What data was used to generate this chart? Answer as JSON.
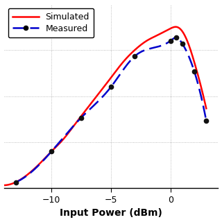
{
  "title": "",
  "xlabel": "Input Power (dBm)",
  "ylabel": "",
  "xlim": [
    -14,
    4
  ],
  "ylim": [
    0,
    60
  ],
  "grid_color": "#aaaaaa",
  "bg_color": "#ffffff",
  "simulated_color": "#ff0000",
  "measured_color": "#0000cc",
  "measured_marker_color": "#111111",
  "sim_x": [
    -14,
    -13,
    -12,
    -11,
    -10,
    -9,
    -8,
    -7,
    -6,
    -5,
    -4,
    -3,
    -2,
    -1,
    0,
    0.5,
    1,
    1.5,
    2,
    2.5,
    3
  ],
  "sim_y": [
    1,
    2,
    4.5,
    8,
    12,
    16,
    21,
    26,
    31,
    36,
    41,
    45,
    48,
    50,
    52,
    52.5,
    51,
    47,
    41,
    34,
    26
  ],
  "meas_x": [
    -13,
    -10,
    -7.5,
    -5,
    -3,
    0,
    0.5,
    1,
    2,
    3
  ],
  "meas_y": [
    2,
    12,
    23,
    33,
    43,
    48,
    49,
    47,
    38,
    22
  ],
  "legend_simulated": "Simulated",
  "legend_measured": "Measured",
  "xlabel_fontsize": 10,
  "legend_fontsize": 9,
  "tick_fontsize": 9
}
